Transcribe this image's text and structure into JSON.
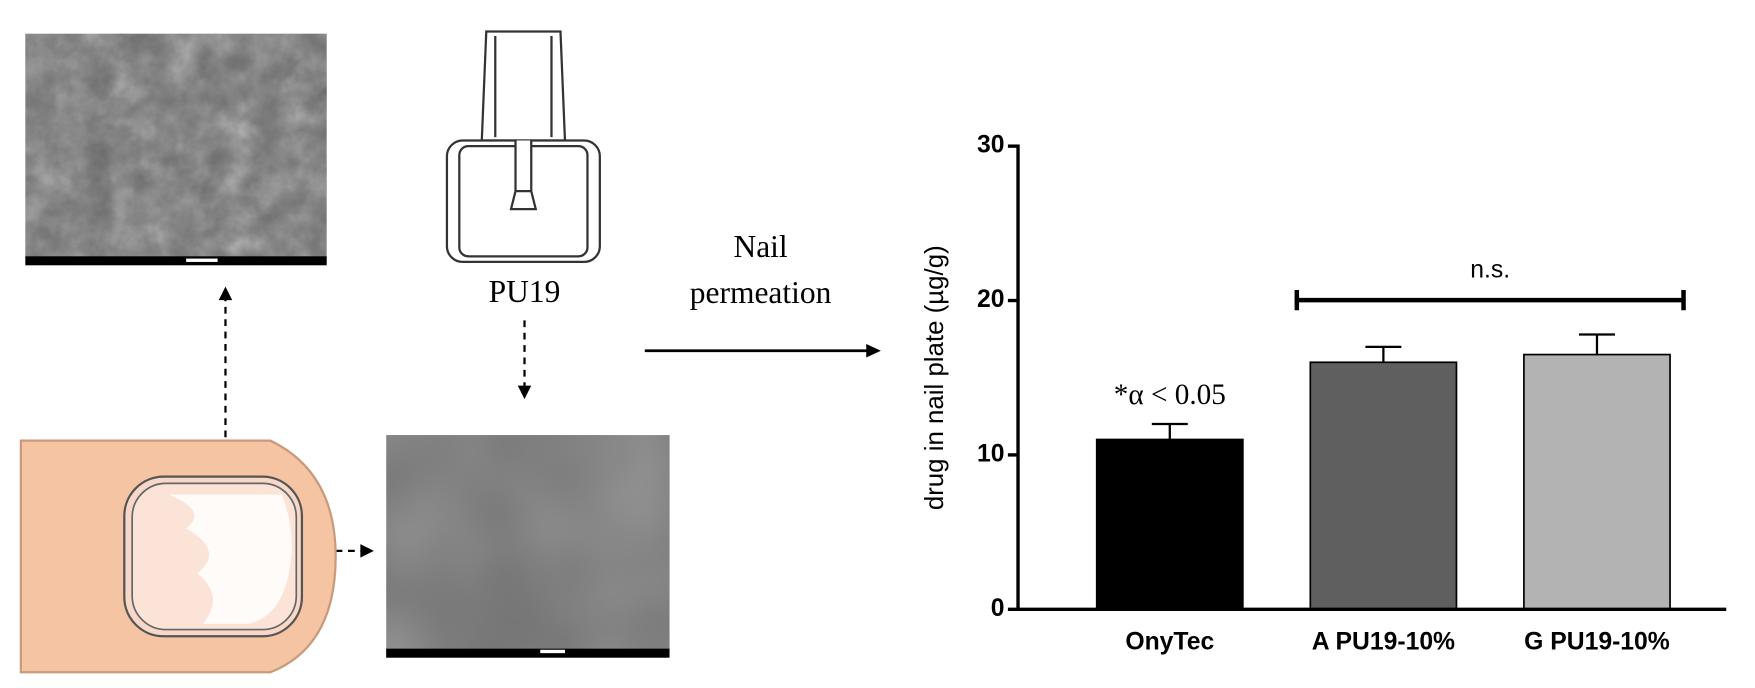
{
  "chart_data": {
    "type": "bar",
    "ylabel": "drug in nail plate (µg/g)",
    "categories": [
      "OnyTec",
      "A PU19-10%",
      "G PU19-10%"
    ],
    "values": [
      11,
      16,
      16.5
    ],
    "errors": [
      1,
      1,
      1.3
    ],
    "colors": [
      "#000000",
      "#5f5f5f",
      "#b3b3b3"
    ],
    "ylim": [
      0,
      30
    ],
    "yticks": [
      0,
      10,
      20,
      30
    ],
    "annotations": [
      "*α < 0.05",
      "n.s."
    ]
  },
  "diagram": {
    "bottle_label": "PU19",
    "arrow_label": [
      "Nail",
      "permeation"
    ]
  }
}
